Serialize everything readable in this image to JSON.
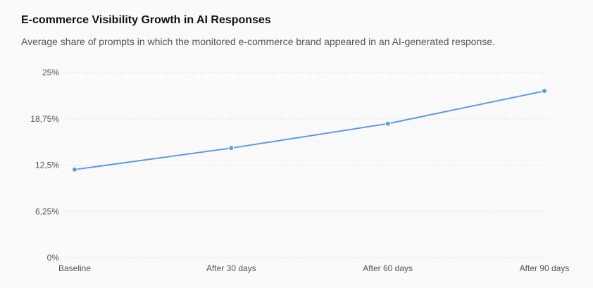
{
  "header": {
    "title": "E-commerce Visibility Growth in AI Responses",
    "subtitle": "Average share of prompts in which the monitored e-commerce brand appeared in an AI-generated response."
  },
  "colors": {
    "line": "#5b9be6",
    "grid": "#e2e2e2",
    "text": "#555555"
  },
  "chart_data": {
    "type": "line",
    "title": "E-commerce Visibility Growth in AI Responses",
    "subtitle": "Average share of prompts in which the monitored e-commerce brand appeared in an AI-generated response.",
    "xlabel": "",
    "ylabel": "",
    "categories": [
      "Baseline",
      "After 30 days",
      "After 60 days",
      "After 90 days"
    ],
    "series": [
      {
        "values": [
          11.9,
          14.8,
          18.1,
          22.5
        ]
      }
    ],
    "ylim": [
      0,
      25
    ],
    "yticks": [
      0,
      6.25,
      12.5,
      18.75,
      25
    ],
    "ytick_labels": [
      "0%",
      "6,25%",
      "12,5%",
      "18,75%",
      "25%"
    ],
    "grid": true,
    "grid_style": "dashed-horizontal",
    "legend": "none"
  }
}
